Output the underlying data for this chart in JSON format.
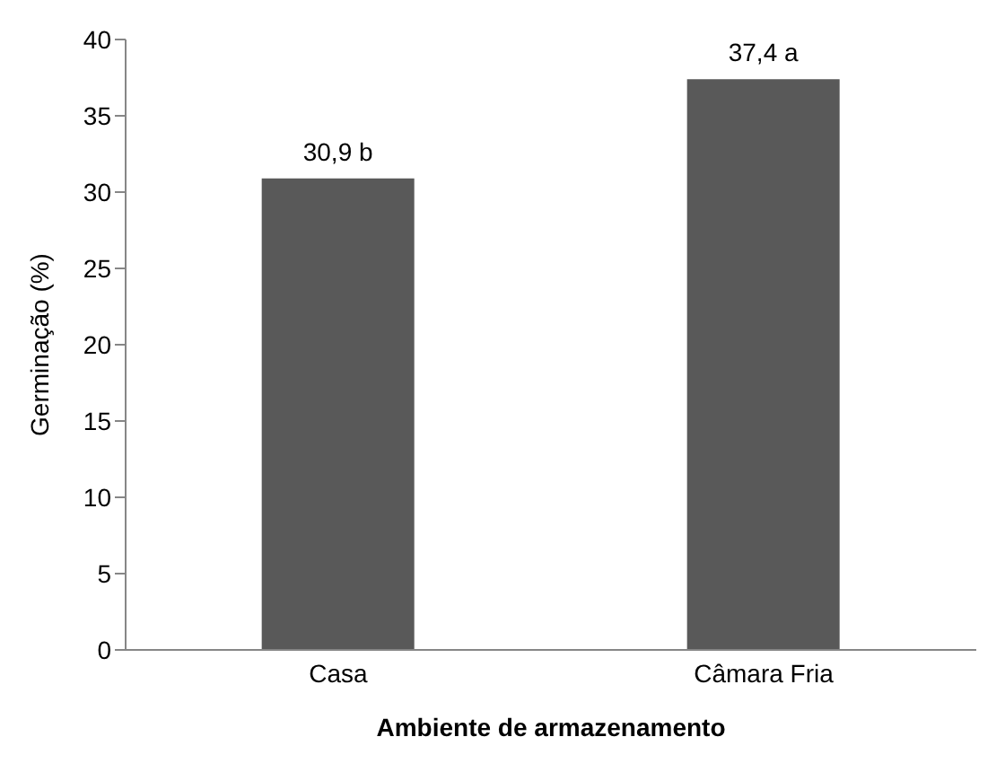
{
  "chart_data": {
    "type": "bar",
    "xlabel": "Ambiente de armazenamento",
    "ylabel": "Germinação (%)",
    "categories": [
      "Casa",
      "Câmara Fria"
    ],
    "values": [
      30.9,
      37.4
    ],
    "color": "#595959",
    "value_labels": [
      "30,9 b",
      "37,4 a"
    ],
    "ylim": [
      0,
      40
    ],
    "yticks": [
      0,
      5,
      10,
      15,
      20,
      25,
      30,
      35,
      40
    ],
    "grid": false,
    "legend": false
  }
}
